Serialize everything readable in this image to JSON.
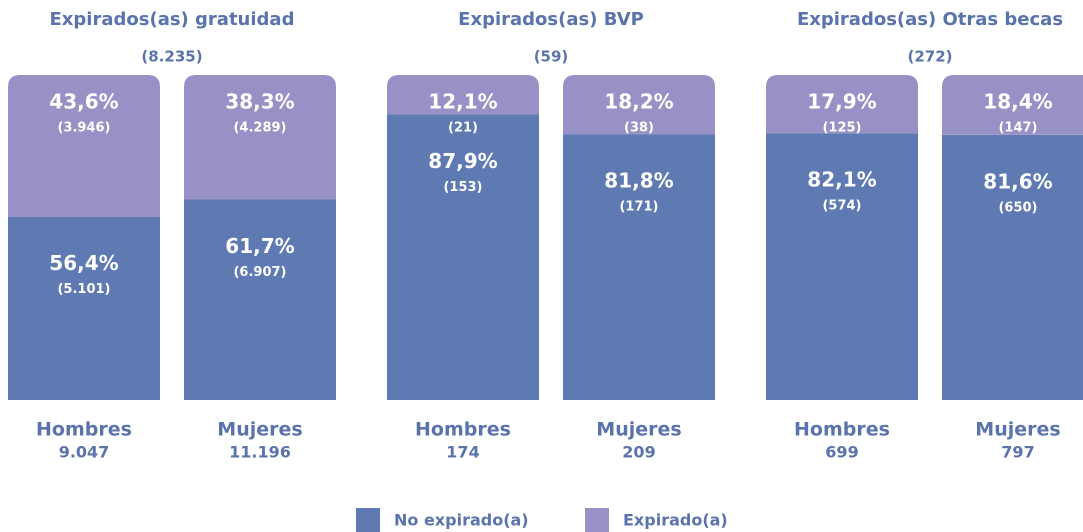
{
  "legend": [
    {
      "name": "No expirado(a)",
      "color": "#5f7ab3"
    },
    {
      "name": "Expirado(a)",
      "color": "#9891c5"
    }
  ],
  "chart_data": [
    {
      "type": "bar",
      "stacked": true,
      "title": "Expirados(as) gratuidad",
      "subtitle": "(8.235)",
      "categories": [
        "Hombres",
        "Mujeres"
      ],
      "category_totals": [
        "9.047",
        "11.196"
      ],
      "ylim": [
        0,
        100
      ],
      "series": [
        {
          "values": [
            56.4,
            61.7
          ],
          "value_labels": [
            "56,4%",
            "61,7%"
          ],
          "count_labels": [
            "(5.101)",
            "(6.907)"
          ]
        },
        {
          "values": [
            43.6,
            38.3
          ],
          "value_labels": [
            "43,6%",
            "38,3%"
          ],
          "count_labels": [
            "(3.946)",
            "(4.289)"
          ]
        }
      ]
    },
    {
      "type": "bar",
      "stacked": true,
      "title": "Expirados(as) BVP",
      "subtitle": "(59)",
      "categories": [
        "Hombres",
        "Mujeres"
      ],
      "category_totals": [
        "174",
        "209"
      ],
      "ylim": [
        0,
        100
      ],
      "series": [
        {
          "values": [
            87.9,
            81.8
          ],
          "value_labels": [
            "87,9%",
            "81,8%"
          ],
          "count_labels": [
            "(153)",
            "(171)"
          ]
        },
        {
          "values": [
            12.1,
            18.2
          ],
          "value_labels": [
            "12,1%",
            "18,2%"
          ],
          "count_labels": [
            "(21)",
            "(38)"
          ]
        }
      ]
    },
    {
      "type": "bar",
      "stacked": true,
      "title": "Expirados(as) Otras becas",
      "subtitle": "(272)",
      "categories": [
        "Hombres",
        "Mujeres"
      ],
      "category_totals": [
        "699",
        "797"
      ],
      "ylim": [
        0,
        100
      ],
      "series": [
        {
          "values": [
            82.1,
            81.6
          ],
          "value_labels": [
            "82,1%",
            "81,6%"
          ],
          "count_labels": [
            "(574)",
            "(650)"
          ]
        },
        {
          "values": [
            17.9,
            18.4
          ],
          "value_labels": [
            "17,9%",
            "18,4%"
          ],
          "count_labels": [
            "(125)",
            "(147)"
          ]
        }
      ]
    }
  ]
}
